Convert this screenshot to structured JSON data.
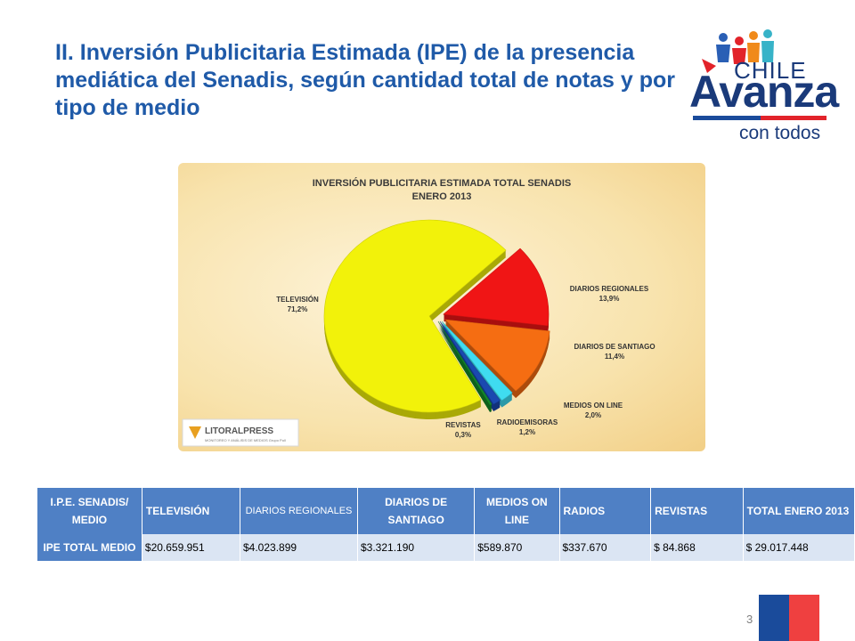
{
  "slide": {
    "title": "II. Inversión Publicitaria Estimada (IPE) de la presencia mediática del Senadis, según cantidad total de notas y por tipo de medio",
    "page_number": "3"
  },
  "logo": {
    "line1": "CHILE",
    "line2": "Avanza",
    "line3": "con todos"
  },
  "chart_data": {
    "type": "pie",
    "title": "INVERSIÓN PUBLICITARIA ESTIMADA TOTAL SENADIS",
    "subtitle": "ENERO 2013",
    "slices": [
      {
        "label": "TELEVISIÓN",
        "value": 71.2,
        "value_label": "71,2%",
        "color": "#f2f20a"
      },
      {
        "label": "DIARIOS REGIONALES",
        "value": 13.9,
        "value_label": "13,9%",
        "color": "#f01515"
      },
      {
        "label": "DIARIOS DE SANTIAGO",
        "value": 11.4,
        "value_label": "11,4%",
        "color": "#f56d12"
      },
      {
        "label": "MEDIOS ON LINE",
        "value": 2.0,
        "value_label": "2,0%",
        "color": "#3fdcf0"
      },
      {
        "label": "RADIOEMISORAS",
        "value": 1.2,
        "value_label": "1,2%",
        "color": "#1a49b0"
      },
      {
        "label": "REVISTAS",
        "value": 0.3,
        "value_label": "0,3%",
        "color": "#148a2a"
      }
    ],
    "watermark": {
      "name": "LITORALPRESS",
      "tagline": "MONITOREO Y ANÁLISIS DE MEDIOS Grupo Pull"
    }
  },
  "table": {
    "headers": [
      {
        "text": "I.P.E. SENADIS/ MEDIO",
        "style": "first"
      },
      {
        "text": "TELEVISIÓN",
        "style": ""
      },
      {
        "text": "DIARIOS REGIONALES",
        "style": "small"
      },
      {
        "text": "DIARIOS DE SANTIAGO",
        "style": "center"
      },
      {
        "text": "MEDIOS ON LINE",
        "style": "center"
      },
      {
        "text": "RADIOS",
        "style": ""
      },
      {
        "text": "REVISTAS",
        "style": ""
      },
      {
        "text": "TOTAL ENERO 2013",
        "style": ""
      }
    ],
    "row_label": "IPE TOTAL MEDIO",
    "row_values": [
      "$20.659.951",
      "$4.023.899",
      "$3.321.190",
      "$589.870",
      "$337.670",
      "$ 84.868",
      "$ 29.017.448"
    ]
  }
}
